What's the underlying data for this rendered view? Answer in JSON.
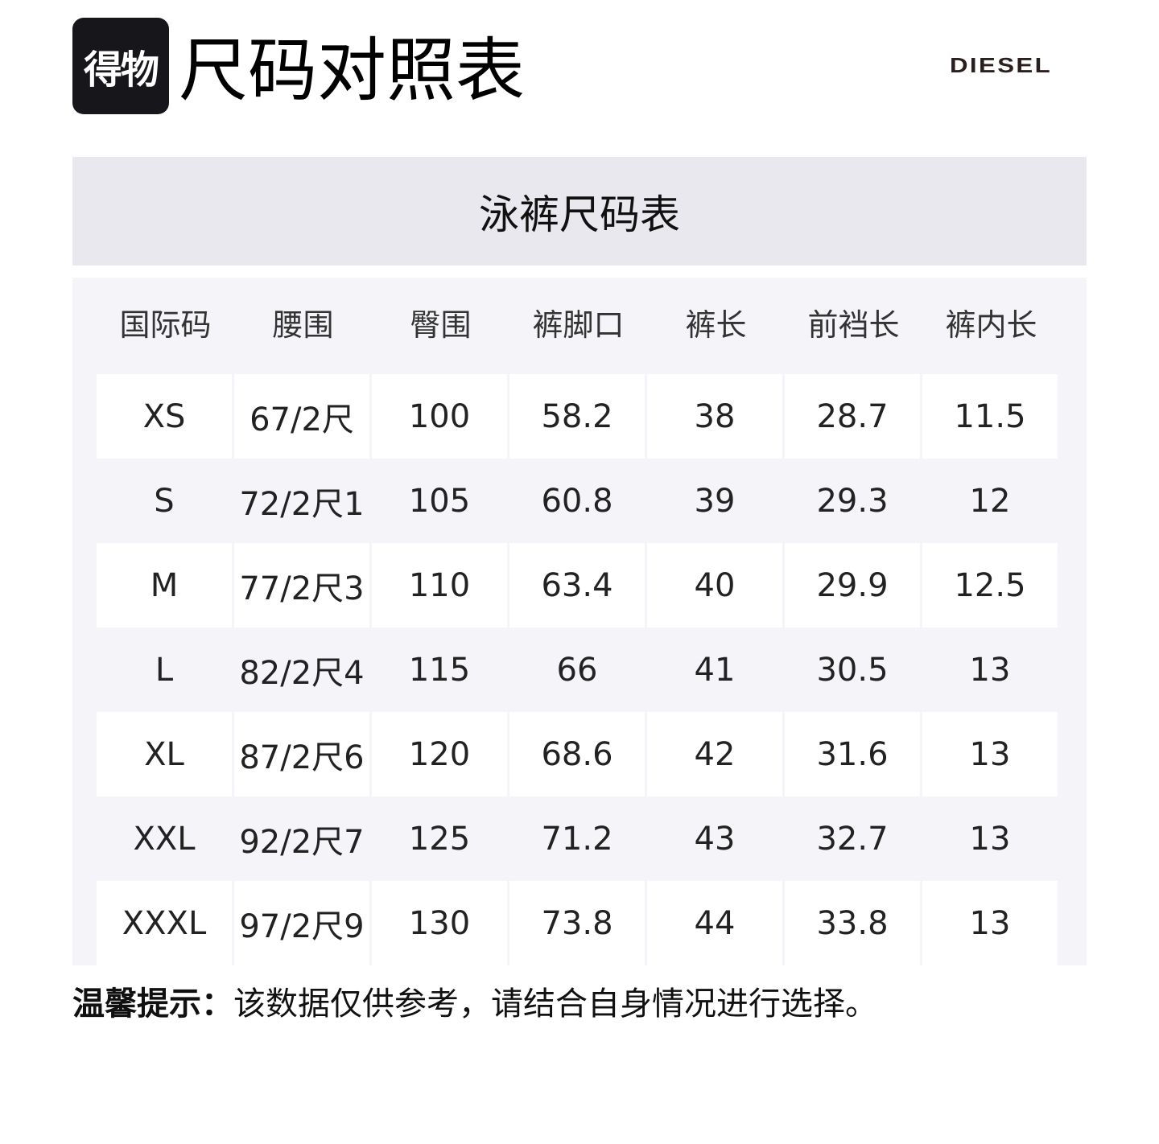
{
  "header": {
    "logo_text": "得物",
    "title": "尺码对照表",
    "brand": "DIESEL"
  },
  "chart_title": "泳裤尺码表",
  "table": {
    "columns": [
      "国际码",
      "腰围",
      "臀围",
      "裤脚口",
      "裤长",
      "前裆长",
      "裤内长"
    ],
    "rows": [
      [
        "XS",
        "67/2尺",
        "100",
        "58.2",
        "38",
        "28.7",
        "11.5"
      ],
      [
        "S",
        "72/2尺1",
        "105",
        "60.8",
        "39",
        "29.3",
        "12"
      ],
      [
        "M",
        "77/2尺3",
        "110",
        "63.4",
        "40",
        "29.9",
        "12.5"
      ],
      [
        "L",
        "82/2尺4",
        "115",
        "66",
        "41",
        "30.5",
        "13"
      ],
      [
        "XL",
        "87/2尺6",
        "120",
        "68.6",
        "42",
        "31.6",
        "13"
      ],
      [
        "XXL",
        "92/2尺7",
        "125",
        "71.2",
        "43",
        "32.7",
        "13"
      ],
      [
        "XXXL",
        "97/2尺9",
        "130",
        "73.8",
        "44",
        "33.8",
        "13"
      ]
    ]
  },
  "footer": {
    "label": "温馨提示：",
    "text": "该数据仅供参考，请结合自身情况进行选择。"
  }
}
